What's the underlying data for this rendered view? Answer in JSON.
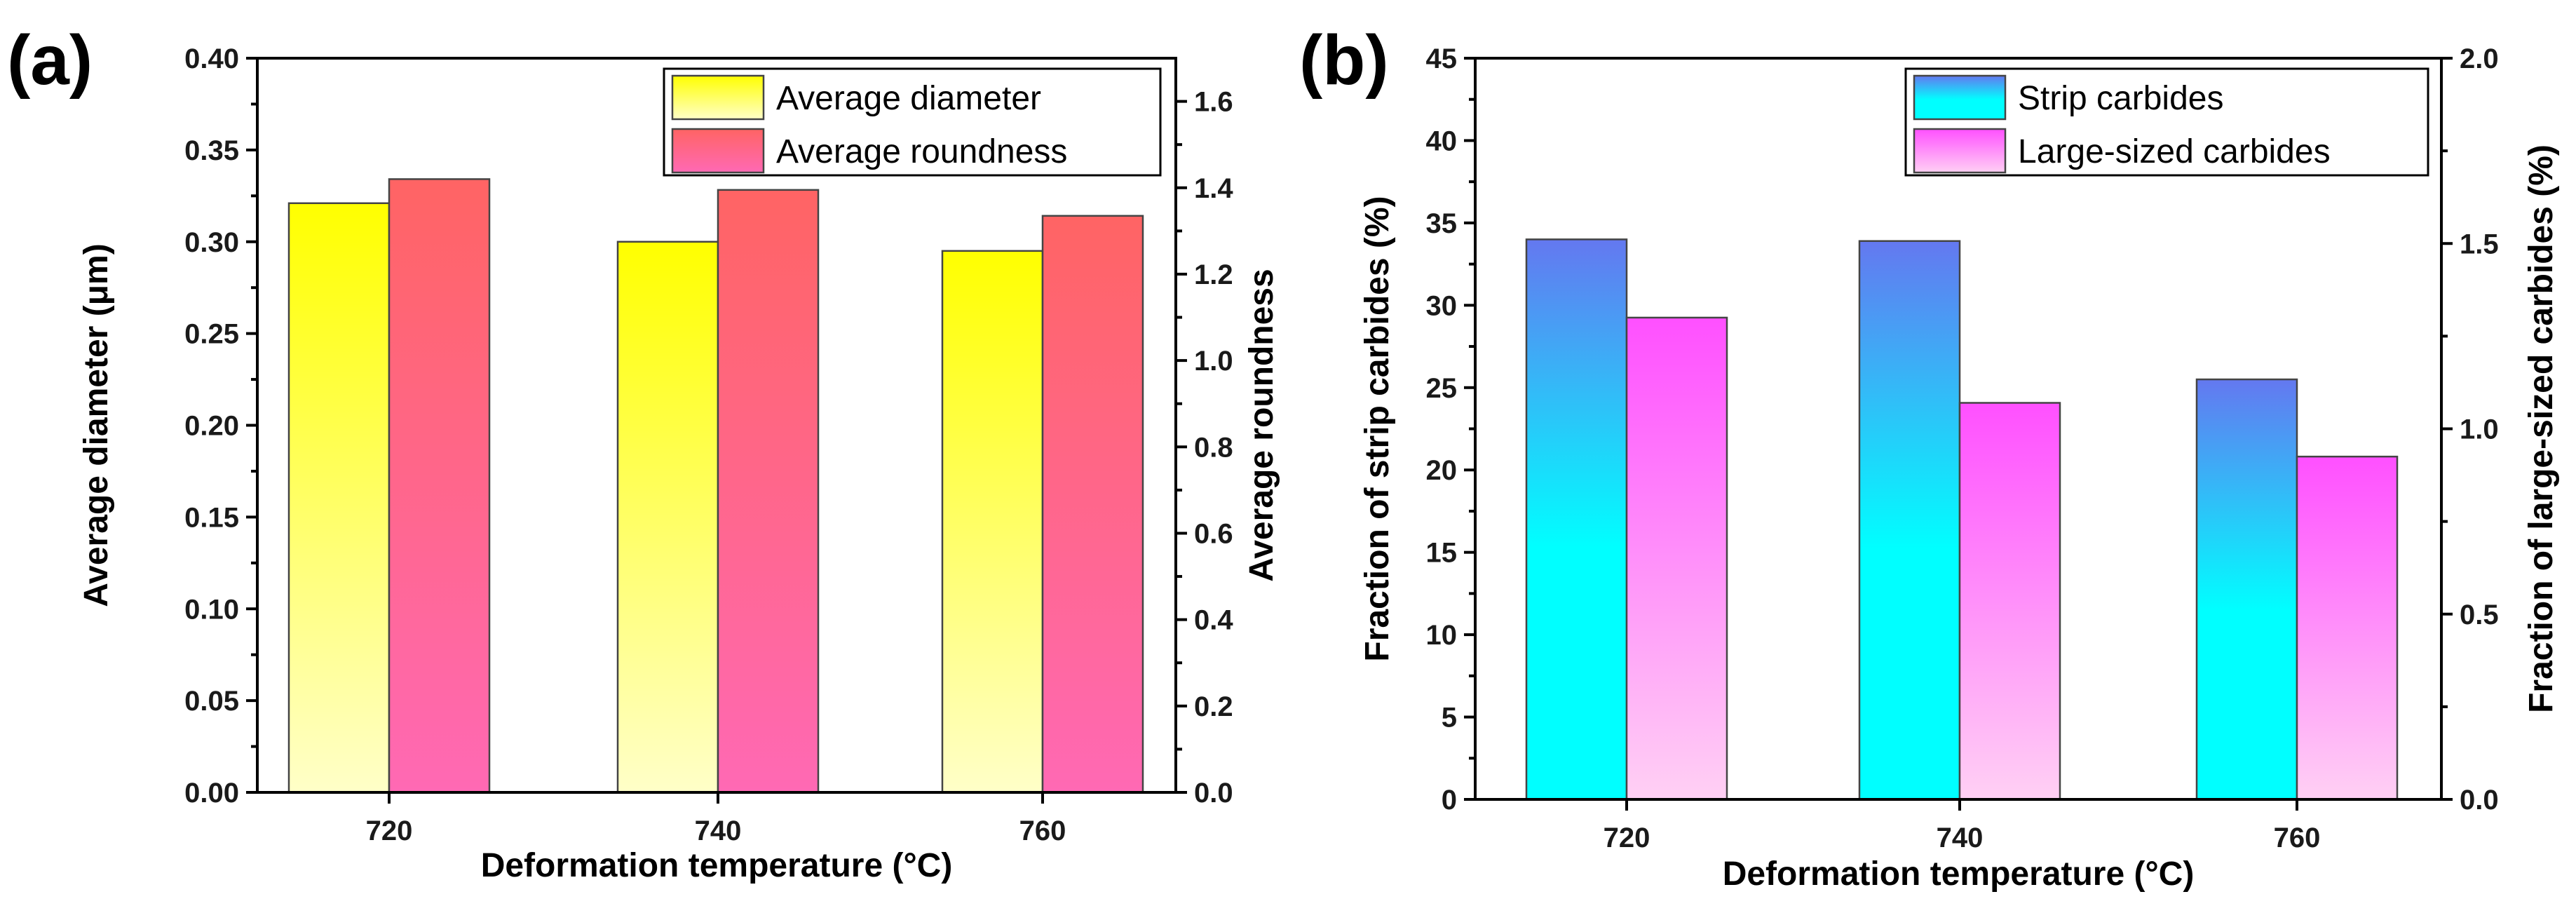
{
  "chart_data": [
    {
      "panel": "(a)",
      "type": "bar",
      "categories": [
        "720",
        "740",
        "760"
      ],
      "xlabel": "Deformation temperature (°C)",
      "ylabel": "Average diameter (μm)",
      "ylabel_right": "Average roundness",
      "ylim": [
        0,
        0.4
      ],
      "ylim_right": [
        0,
        1.7
      ],
      "yticks": [
        "0.00",
        "0.05",
        "0.10",
        "0.15",
        "0.20",
        "0.25",
        "0.30",
        "0.35",
        "0.40"
      ],
      "yticks_right": [
        "0.0",
        "0.2",
        "0.4",
        "0.6",
        "0.8",
        "1.0",
        "1.2",
        "1.4",
        "1.6"
      ],
      "legend_position": "top-right",
      "series": [
        {
          "name": "Average diameter",
          "axis": "left",
          "values": [
            0.321,
            0.3,
            0.295
          ],
          "color_top": "#ffff00",
          "color_bottom": "#ffffc8"
        },
        {
          "name": "Average roundness",
          "axis": "right",
          "values": [
            1.42,
            1.395,
            1.335
          ],
          "color_top": "#ff6464",
          "color_bottom": "#ff69b4"
        }
      ]
    },
    {
      "panel": "(b)",
      "type": "bar",
      "categories": [
        "720",
        "740",
        "760"
      ],
      "xlabel": "Deformation temperature (°C)",
      "ylabel": "Fraction of strip carbides (%)",
      "ylabel_right": "Fraction of large-sized carbides (%)",
      "ylim": [
        0,
        45
      ],
      "ylim_right": [
        0,
        2.0
      ],
      "yticks": [
        "0",
        "5",
        "10",
        "15",
        "20",
        "25",
        "30",
        "35",
        "40",
        "45"
      ],
      "yticks_right": [
        "0.0",
        "0.5",
        "1.0",
        "1.5",
        "2.0"
      ],
      "legend_position": "top-right",
      "series": [
        {
          "name": "Strip carbides",
          "axis": "left",
          "values": [
            34.0,
            33.9,
            25.5
          ],
          "color_top": "#6478f0",
          "color_bottom": "#00ffff"
        },
        {
          "name": "Large-sized carbides",
          "axis": "right",
          "values": [
            1.3,
            1.07,
            0.925
          ],
          "color_top": "#ff50ff",
          "color_bottom": "#ffd0f4"
        }
      ]
    }
  ]
}
